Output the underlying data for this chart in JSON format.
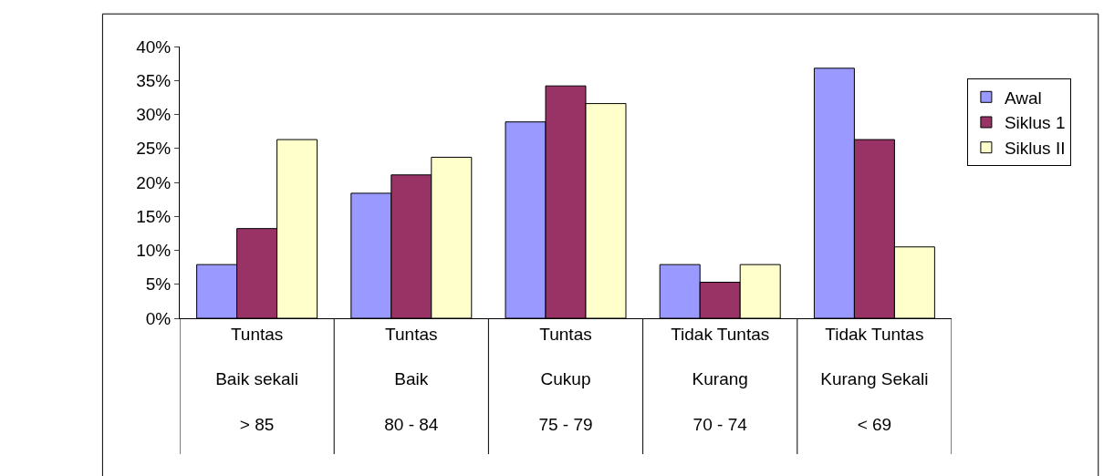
{
  "chart_data": {
    "type": "bar",
    "categories": [
      "Tuntas\nBaik sekali\n> 85",
      "Tuntas\nBaik\n80 - 84",
      "Tuntas\nCukup\n75 - 79",
      "Tidak Tuntas\nKurang\n70 - 74",
      "Tidak Tuntas\nKurang Sekali\n< 69"
    ],
    "series": [
      {
        "name": "Awal",
        "color": "#9999ff",
        "values": [
          7.9,
          18.4,
          28.9,
          7.9,
          36.8
        ]
      },
      {
        "name": "Siklus 1",
        "color": "#993366",
        "values": [
          13.2,
          21.1,
          34.2,
          5.3,
          26.3
        ]
      },
      {
        "name": "Siklus II",
        "color": "#ffffcc",
        "values": [
          26.3,
          23.7,
          31.6,
          7.9,
          10.5
        ]
      }
    ],
    "ylim": [
      0,
      40
    ],
    "yticks": [
      {
        "value": 0,
        "label": "0%"
      },
      {
        "value": 5,
        "label": "5%"
      },
      {
        "value": 10,
        "label": "10%"
      },
      {
        "value": 15,
        "label": "15%"
      },
      {
        "value": 20,
        "label": "20%"
      },
      {
        "value": 25,
        "label": "25%"
      },
      {
        "value": 30,
        "label": "30%"
      },
      {
        "value": 35,
        "label": "35%"
      },
      {
        "value": 40,
        "label": "40%"
      }
    ],
    "grid": false,
    "legend": "right"
  }
}
